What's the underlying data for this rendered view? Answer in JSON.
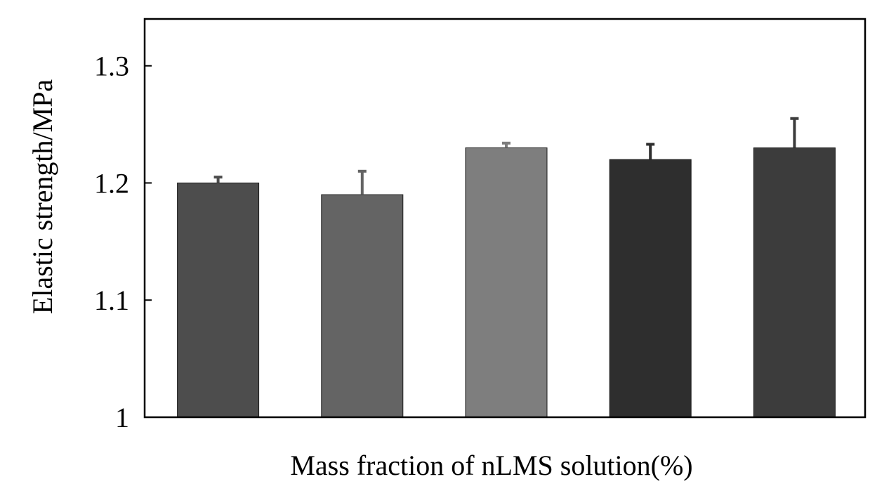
{
  "chart_data": {
    "type": "bar",
    "title": "",
    "xlabel": "Mass fraction of nLMS solution(%)",
    "ylabel": "Elastic strength/MPa",
    "categories": [
      "",
      "",
      "",
      "",
      ""
    ],
    "values": [
      1.2,
      1.19,
      1.23,
      1.22,
      1.23
    ],
    "errors": [
      0.005,
      0.02,
      0.004,
      0.013,
      0.025
    ],
    "bar_colors": [
      "#4d4d4d",
      "#646464",
      "#7e7e7e",
      "#2e2e2e",
      "#3c3c3c"
    ],
    "ylim": [
      1.0,
      1.34
    ],
    "yticks": [
      1,
      1.1,
      1.2,
      1.3
    ],
    "ytick_labels": [
      "1",
      "1.1",
      "1.2",
      "1.3"
    ],
    "grid": false,
    "legend": "none"
  }
}
